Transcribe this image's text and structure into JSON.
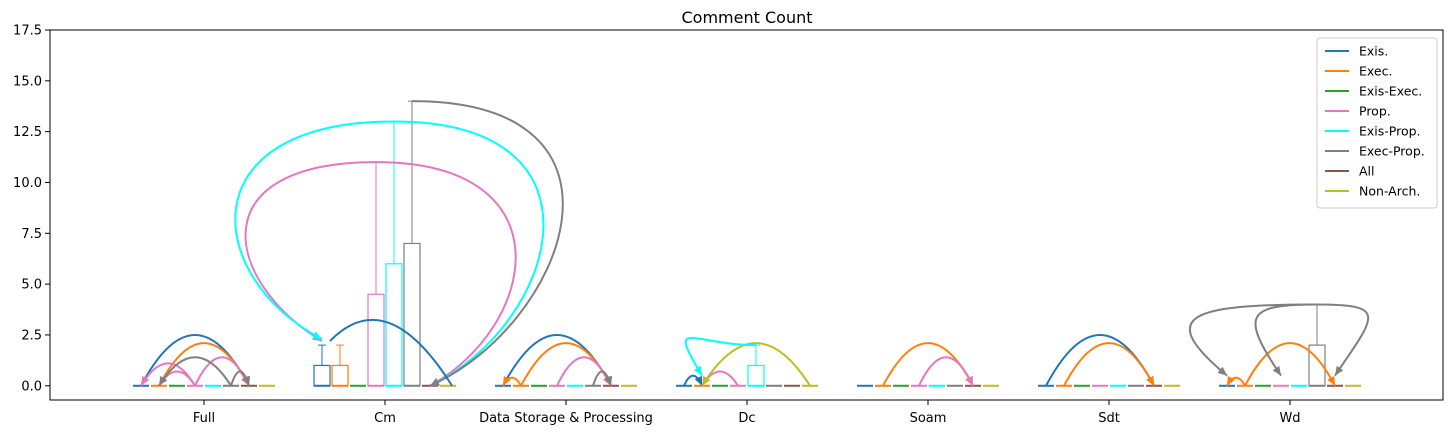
{
  "chart_data": {
    "type": "box",
    "title": "Comment Count",
    "xlabel": "",
    "ylabel": "",
    "ylim": [
      -0.7,
      17.5
    ],
    "yticks": [
      0.0,
      2.5,
      5.0,
      7.5,
      10.0,
      12.5,
      15.0,
      17.5
    ],
    "ytick_labels": [
      "0.0",
      "2.5",
      "5.0",
      "7.5",
      "10.0",
      "12.5",
      "15.0",
      "17.5"
    ],
    "categories": [
      "Full",
      "Cm",
      "Data Storage & Processing",
      "Dc",
      "Soam",
      "Sdt",
      "Wd"
    ],
    "legend_position": "top-right",
    "series": [
      {
        "name": "Exis.",
        "color": "#1f77b4"
      },
      {
        "name": "Exec.",
        "color": "#ff7f0e"
      },
      {
        "name": "Exis-Exec.",
        "color": "#2ca02c"
      },
      {
        "name": "Prop.",
        "color": "#e377c2"
      },
      {
        "name": "Exis-Prop.",
        "color": "#00ffff"
      },
      {
        "name": "Exec-Prop.",
        "color": "#7f7f7f"
      },
      {
        "name": "All",
        "color": "#8c564b"
      },
      {
        "name": "Non-Arch.",
        "color": "#bcbd22"
      }
    ],
    "boxes": [
      {
        "category": "Cm",
        "series": "Exis.",
        "q1": 0,
        "q3": 1,
        "whisker_high": 2
      },
      {
        "category": "Cm",
        "series": "Exec.",
        "q1": 0,
        "q3": 1,
        "whisker_high": 2
      },
      {
        "category": "Cm",
        "series": "Prop.",
        "q1": 0,
        "q3": 4.5,
        "whisker_high": 11
      },
      {
        "category": "Cm",
        "series": "Exis-Prop.",
        "q1": 0,
        "q3": 6,
        "whisker_high": 13
      },
      {
        "category": "Cm",
        "series": "Exec-Prop.",
        "q1": 0,
        "q3": 7,
        "whisker_high": 14
      },
      {
        "category": "Dc",
        "series": "Exis-Prop.",
        "q1": 0,
        "q3": 1,
        "whisker_high": 2
      },
      {
        "category": "Wd",
        "series": "Exec-Prop.",
        "q1": 0,
        "q3": 2,
        "whisker_high": 4
      }
    ],
    "arcs": [
      {
        "category": "Full",
        "from": 0,
        "to": 6,
        "color": "#1f77b4",
        "peak": 2.5
      },
      {
        "category": "Full",
        "from": 1,
        "to": 6,
        "color": "#ff7f0e",
        "peak": 2.1
      },
      {
        "category": "Full",
        "from": 3,
        "to": 0,
        "color": "#e377c2",
        "peak": 1.1
      },
      {
        "category": "Full",
        "from": 3,
        "to": 1,
        "color": "#e377c2",
        "peak": 0.7
      },
      {
        "category": "Full",
        "from": 3,
        "to": 6,
        "color": "#e377c2",
        "peak": 1.4
      },
      {
        "category": "Full",
        "from": 5,
        "to": 1,
        "color": "#7f7f7f",
        "peak": 1.4
      },
      {
        "category": "Full",
        "from": 5,
        "to": 6,
        "color": "#7f7f7f",
        "peak": 0.7
      },
      {
        "category": "Data Storage & Processing",
        "from": 0,
        "to": 6,
        "color": "#1f77b4",
        "peak": 2.5
      },
      {
        "category": "Data Storage & Processing",
        "from": 1,
        "to": 6,
        "color": "#ff7f0e",
        "peak": 2.1
      },
      {
        "category": "Data Storage & Processing",
        "from": 1,
        "to": 0,
        "color": "#ff7f0e",
        "peak": 0.4
      },
      {
        "category": "Data Storage & Processing",
        "from": 3,
        "to": 6,
        "color": "#e377c2",
        "peak": 1.4
      },
      {
        "category": "Data Storage & Processing",
        "from": 5,
        "to": 6,
        "color": "#7f7f7f",
        "peak": 0.7
      },
      {
        "category": "Dc",
        "from": 0,
        "to": 1,
        "color": "#1f77b4",
        "peak": 0.5
      },
      {
        "category": "Dc",
        "from": 3,
        "to": 1,
        "color": "#e377c2",
        "peak": 0.7
      },
      {
        "category": "Dc",
        "from": 7,
        "to": 1,
        "color": "#bcbd22",
        "peak": 2.1
      },
      {
        "category": "Soam",
        "from": 1,
        "to": 6,
        "color": "#ff7f0e",
        "peak": 2.1
      },
      {
        "category": "Soam",
        "from": 3,
        "to": 6,
        "color": "#e377c2",
        "peak": 1.4
      },
      {
        "category": "Sdt",
        "from": 0,
        "to": 6,
        "color": "#1f77b4",
        "peak": 2.5
      },
      {
        "category": "Sdt",
        "from": 1,
        "to": 6,
        "color": "#ff7f0e",
        "peak": 2.1
      },
      {
        "category": "Wd",
        "from": 1,
        "to": 0,
        "color": "#ff7f0e",
        "peak": 0.4
      },
      {
        "category": "Wd",
        "from": 1,
        "to": 6,
        "color": "#ff7f0e",
        "peak": 2.1
      }
    ]
  }
}
